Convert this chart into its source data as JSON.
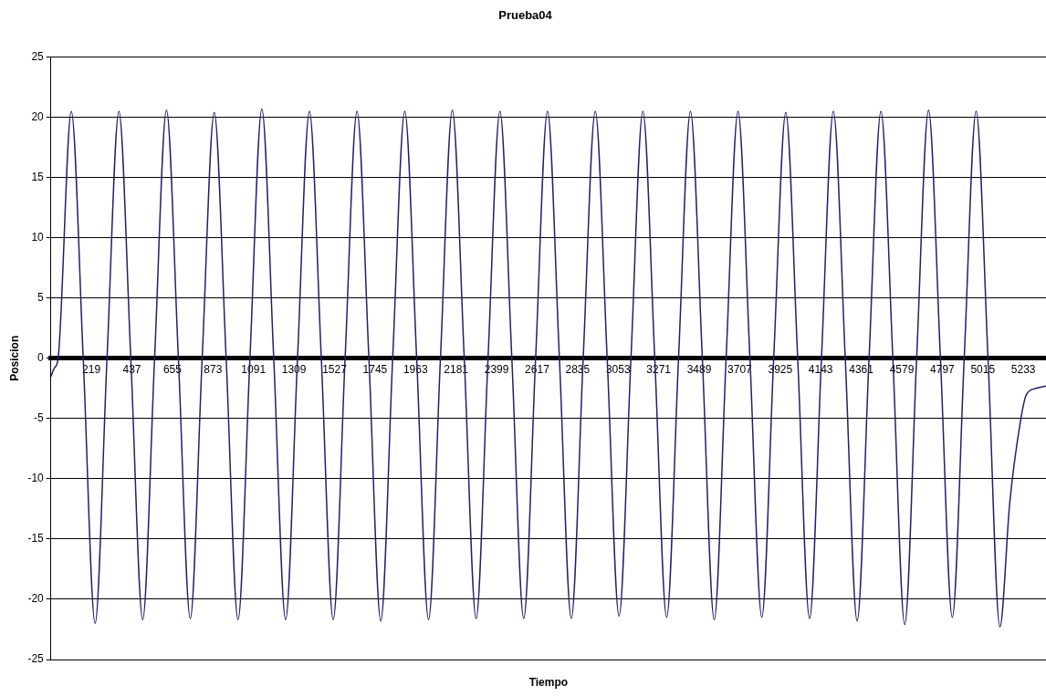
{
  "chart_data": {
    "type": "line",
    "title": "Prueba04",
    "xlabel": "Tiempo",
    "ylabel": "Posicion",
    "marker": "none",
    "grid": "y",
    "xlim": [
      1,
      5355
    ],
    "xticks": [
      219,
      437,
      655,
      873,
      1091,
      1309,
      1527,
      1745,
      1963,
      2181,
      2399,
      2617,
      2835,
      3053,
      3271,
      3489,
      3707,
      3925,
      4143,
      4361,
      4579,
      4797,
      5015,
      5233
    ],
    "ylim": [
      -25,
      25
    ],
    "yticks": [
      -25,
      -20,
      -15,
      -10,
      -5,
      0,
      5,
      10,
      15,
      20,
      25
    ],
    "series": [
      {
        "color": "#202070",
        "x": [
          1,
          20,
          40,
          111,
          175,
          239,
          303,
          367,
          431,
          495,
          559,
          623,
          687,
          751,
          815,
          880,
          944,
          1008,
          1072,
          1136,
          1200,
          1264,
          1328,
          1392,
          1456,
          1520,
          1584,
          1648,
          1712,
          1776,
          1840,
          1905,
          1969,
          2033,
          2097,
          2161,
          2225,
          2289,
          2353,
          2417,
          2481,
          2545,
          2609,
          2673,
          2737,
          2801,
          2865,
          2930,
          2994,
          3058,
          3122,
          3186,
          3250,
          3314,
          3378,
          3442,
          3506,
          3570,
          3634,
          3698,
          3762,
          3826,
          3890,
          3955,
          4019,
          4083,
          4147,
          4211,
          4275,
          4339,
          4403,
          4467,
          4531,
          4595,
          4659,
          4723,
          4787,
          4851,
          4915,
          4979,
          5043,
          5107,
          5160,
          5220,
          5250,
          5300,
          5355
        ],
        "values": [
          -1.5,
          -0.8,
          0,
          20.5,
          0,
          -22,
          0,
          20.5,
          0,
          -21.7,
          0,
          20.6,
          0,
          -21.6,
          0,
          20.4,
          0,
          -21.7,
          0,
          20.7,
          0,
          -21.7,
          0,
          20.5,
          0,
          -21.7,
          0,
          20.5,
          0,
          -21.8,
          0,
          20.5,
          0,
          -21.7,
          0,
          20.6,
          0,
          -21.6,
          0,
          20.5,
          0,
          -21.6,
          0,
          20.5,
          0,
          -21.6,
          0,
          20.5,
          0,
          -21.4,
          0,
          20.5,
          0,
          -21.5,
          0,
          20.5,
          0,
          -21.7,
          0,
          20.5,
          0,
          -21.5,
          0,
          20.4,
          0,
          -21.6,
          0,
          20.5,
          0,
          -21.8,
          0,
          20.5,
          0,
          -22.1,
          0,
          20.6,
          0,
          -21.5,
          0,
          20.5,
          0,
          -22.3,
          -12,
          -5,
          -3,
          -2.5,
          -2.3
        ]
      }
    ]
  }
}
